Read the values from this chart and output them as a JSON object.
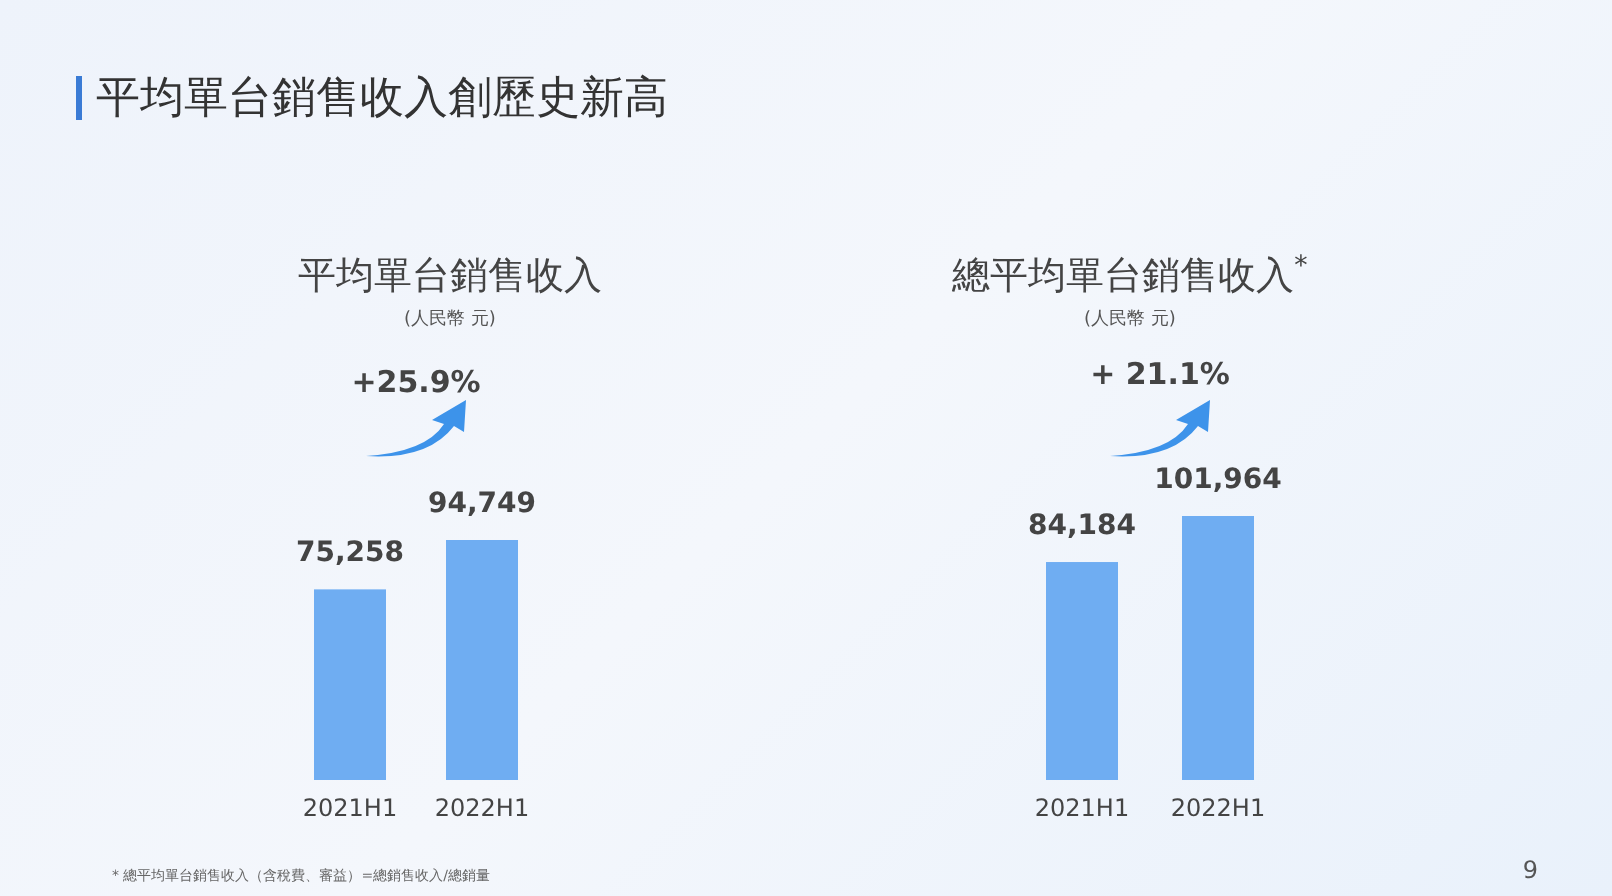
{
  "chart_data": [
    {
      "type": "bar",
      "title": "平均單台銷售收入",
      "subtitle": "(人民幣 元)",
      "categories": [
        "2021H1",
        "2022H1"
      ],
      "values": [
        75258,
        94749
      ],
      "value_labels": [
        "75,258",
        "94,749"
      ],
      "color": "#6fadf2",
      "annotations": [
        "平均單台銷售收入創歷史新高",
        "+25.9%",
        "* 總平均單台銷售收入（含稅費、審益）=總銷售收入/總銷量"
      ]
    },
    {
      "type": "bar",
      "title": "總平均單台銷售收入$^{*}$",
      "subtitle": "(人民幣 元)",
      "categories": [
        "2021H1",
        "2022H1"
      ],
      "values": [
        84184,
        101964
      ],
      "value_labels": [
        "84,184",
        "101,964"
      ],
      "color": "#6fadf2",
      "annotations": [
        "+ 21.1%",
        "9"
      ]
    }
  ]
}
